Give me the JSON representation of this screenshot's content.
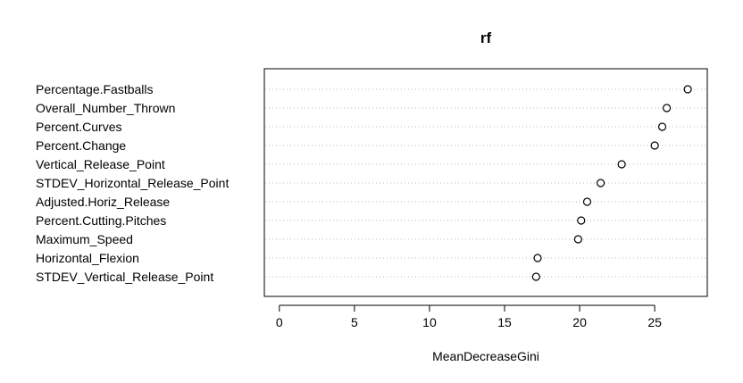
{
  "chart_data": {
    "type": "scatter",
    "title": "rf",
    "xlabel": "MeanDecreaseGini",
    "ylabel": "",
    "xlim": [
      -1,
      28.5
    ],
    "xticks": [
      0,
      5,
      10,
      15,
      20,
      25
    ],
    "grid": "horizontal dotted lines per variable",
    "legend": "none",
    "marker": "open circle",
    "categories": [
      "Percentage.Fastballs",
      "Overall_Number_Thrown",
      "Percent.Curves",
      "Percent.Change",
      "Vertical_Release_Point",
      "STDEV_Horizontal_Release_Point",
      "Adjusted.Horiz_Release",
      "Percent.Cutting.Pitches",
      "Maximum_Speed",
      "Horizontal_Flexion",
      "STDEV_Vertical_Release_Point"
    ],
    "values": [
      27.2,
      25.8,
      25.5,
      25.0,
      22.8,
      21.4,
      20.5,
      20.1,
      19.9,
      17.2,
      17.1
    ]
  }
}
